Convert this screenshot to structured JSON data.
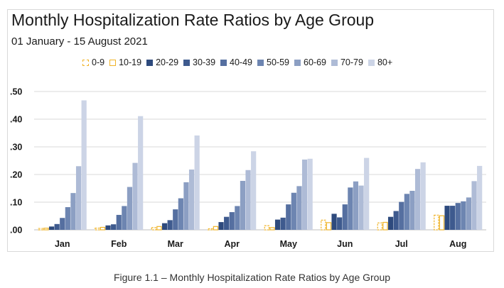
{
  "caption": "Figure 1.1 – Monthly Hospitalization Rate Ratios by Age Group",
  "chart_data": {
    "type": "bar",
    "title": "Monthly Hospitalization Rate Ratios by Age Group",
    "subtitle": "01 January - 15 August 2021",
    "xlabel": "",
    "ylabel": "",
    "categories": [
      "Jan",
      "Feb",
      "Mar",
      "Apr",
      "May",
      "Jun",
      "Jul",
      "Aug"
    ],
    "ylim": [
      0,
      0.5
    ],
    "yticks": [
      0,
      0.1,
      0.2,
      0.3,
      0.4,
      0.5
    ],
    "ytick_labels": [
      ".00",
      ".10",
      ".20",
      ".30",
      ".40",
      ".50"
    ],
    "grid": true,
    "legend_position": "top",
    "series": [
      {
        "name": "0-9",
        "color": "#f0b429",
        "style": "dashed",
        "values": [
          0.005,
          0.006,
          0.008,
          0.004,
          0.015,
          0.035,
          0.025,
          0.053
        ]
      },
      {
        "name": "10-19",
        "color": "#f0b429",
        "style": "outline",
        "values": [
          0.006,
          0.009,
          0.012,
          0.012,
          0.008,
          0.026,
          0.027,
          0.051
        ]
      },
      {
        "name": "20-29",
        "color": "#2e4a7d",
        "style": "solid",
        "values": [
          0.012,
          0.016,
          0.024,
          0.028,
          0.037,
          0.058,
          0.047,
          0.087
        ]
      },
      {
        "name": "30-39",
        "color": "#3e5a8e",
        "style": "solid",
        "values": [
          0.021,
          0.02,
          0.035,
          0.047,
          0.044,
          0.045,
          0.068,
          0.087
        ]
      },
      {
        "name": "40-49",
        "color": "#556fa0",
        "style": "solid",
        "values": [
          0.043,
          0.054,
          0.074,
          0.064,
          0.092,
          0.092,
          0.101,
          0.097
        ]
      },
      {
        "name": "50-59",
        "color": "#6d85b1",
        "style": "solid",
        "values": [
          0.082,
          0.086,
          0.114,
          0.086,
          0.134,
          0.153,
          0.13,
          0.103
        ]
      },
      {
        "name": "60-69",
        "color": "#8c9fc3",
        "style": "solid",
        "values": [
          0.133,
          0.155,
          0.172,
          0.177,
          0.158,
          0.175,
          0.141,
          0.117
        ]
      },
      {
        "name": "70-79",
        "color": "#aebbd6",
        "style": "solid",
        "values": [
          0.23,
          0.242,
          0.218,
          0.216,
          0.254,
          0.16,
          0.22,
          0.176
        ]
      },
      {
        "name": "80+",
        "color": "#ccd4e6",
        "style": "solid",
        "values": [
          0.468,
          0.411,
          0.341,
          0.284,
          0.257,
          0.26,
          0.244,
          0.231
        ]
      }
    ]
  }
}
